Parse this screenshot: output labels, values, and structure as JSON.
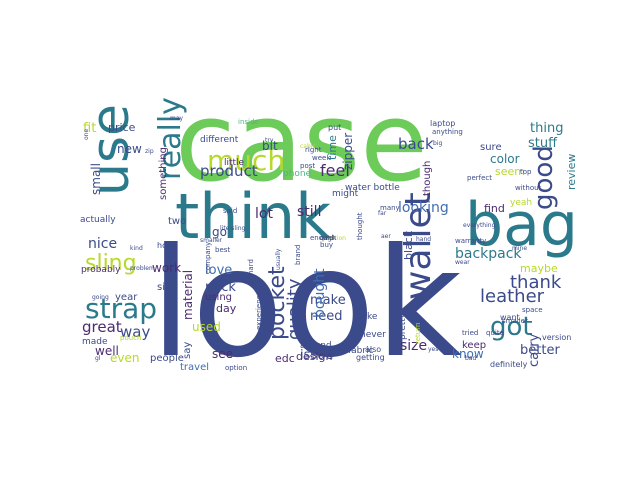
{
  "wordcloud": {
    "palette": {
      "background": "#ffffff",
      "navy": "#3b4a8a",
      "teal": "#2b7a8c",
      "green": "#6dcb5a",
      "lime": "#b7d92b",
      "purple": "#4b2c6e",
      "blue": "#3f6eb0",
      "seafoam": "#4fb38a",
      "yellow": "#e3df34"
    },
    "words": [
      {
        "text": "case",
        "color": "green"
      },
      {
        "text": "look",
        "color": "navy"
      },
      {
        "text": "think",
        "color": "teal"
      },
      {
        "text": "use",
        "color": "teal"
      },
      {
        "text": "bag",
        "color": "teal"
      },
      {
        "text": "wallet",
        "color": "navy"
      },
      {
        "text": "much",
        "color": "lime"
      },
      {
        "text": "really",
        "color": "teal"
      },
      {
        "text": "strap",
        "color": "teal"
      },
      {
        "text": "sling",
        "color": "lime"
      },
      {
        "text": "got",
        "color": "teal"
      },
      {
        "text": "good",
        "color": "navy"
      },
      {
        "text": "leather",
        "color": "navy"
      },
      {
        "text": "thank",
        "color": "navy"
      },
      {
        "text": "pocket",
        "color": "navy"
      },
      {
        "text": "quality",
        "color": "navy"
      },
      {
        "text": "product",
        "color": "navy"
      },
      {
        "text": "feel",
        "color": "purple"
      },
      {
        "text": "back",
        "color": "navy"
      },
      {
        "text": "looking",
        "color": "blue"
      },
      {
        "text": "backpack",
        "color": "teal"
      },
      {
        "text": "make",
        "color": "navy"
      },
      {
        "text": "need",
        "color": "navy"
      },
      {
        "text": "still",
        "color": "purple"
      },
      {
        "text": "lot",
        "color": "purple"
      },
      {
        "text": "love",
        "color": "blue"
      },
      {
        "text": "nice",
        "color": "navy"
      },
      {
        "text": "great",
        "color": "purple"
      },
      {
        "text": "way",
        "color": "navy"
      },
      {
        "text": "pack",
        "color": "navy"
      },
      {
        "text": "used",
        "color": "lime"
      },
      {
        "text": "thing",
        "color": "teal"
      },
      {
        "text": "stuff",
        "color": "teal"
      },
      {
        "text": "color",
        "color": "teal"
      },
      {
        "text": "review",
        "color": "teal"
      },
      {
        "text": "better",
        "color": "navy"
      },
      {
        "text": "carry",
        "color": "navy"
      },
      {
        "text": "size",
        "color": "purple"
      },
      {
        "text": "know",
        "color": "blue"
      },
      {
        "text": "bought",
        "color": "blue"
      },
      {
        "text": "material",
        "color": "purple"
      },
      {
        "text": "design",
        "color": "purple"
      },
      {
        "text": "issue",
        "color": "navy"
      },
      {
        "text": "work",
        "color": "purple"
      },
      {
        "text": "well",
        "color": "purple"
      },
      {
        "text": "even",
        "color": "lime"
      },
      {
        "text": "see",
        "color": "purple"
      },
      {
        "text": "new",
        "color": "navy"
      },
      {
        "text": "fit",
        "color": "lime"
      },
      {
        "text": "price",
        "color": "navy"
      },
      {
        "text": "small",
        "color": "navy"
      },
      {
        "text": "bit",
        "color": "navy"
      },
      {
        "text": "go",
        "color": "navy"
      },
      {
        "text": "day",
        "color": "purple"
      },
      {
        "text": "using",
        "color": "purple"
      },
      {
        "text": "two",
        "color": "navy"
      },
      {
        "text": "side",
        "color": "navy"
      },
      {
        "text": "year",
        "color": "navy"
      },
      {
        "text": "say",
        "color": "navy"
      },
      {
        "text": "find",
        "color": "purple"
      },
      {
        "text": "seem",
        "color": "lime"
      },
      {
        "text": "maybe",
        "color": "lime"
      },
      {
        "text": "keep",
        "color": "purple"
      },
      {
        "text": "zipper",
        "color": "navy"
      },
      {
        "text": "edc",
        "color": "purple"
      },
      {
        "text": "people",
        "color": "navy"
      },
      {
        "text": "travel",
        "color": "blue"
      },
      {
        "text": "black",
        "color": "navy"
      },
      {
        "text": "sure",
        "color": "navy"
      },
      {
        "text": "time",
        "color": "teal"
      },
      {
        "text": "different",
        "color": "navy"
      },
      {
        "text": "little",
        "color": "purple"
      },
      {
        "text": "something",
        "color": "purple"
      },
      {
        "text": "probably",
        "color": "purple"
      },
      {
        "text": "actually",
        "color": "navy"
      },
      {
        "text": "made",
        "color": "navy"
      },
      {
        "text": "take",
        "color": "navy"
      },
      {
        "text": "never",
        "color": "navy"
      },
      {
        "text": "might",
        "color": "navy"
      },
      {
        "text": "around",
        "color": "navy"
      },
      {
        "text": "phone",
        "color": "seafoam"
      },
      {
        "text": "water bottle",
        "color": "navy"
      },
      {
        "text": "laptop",
        "color": "navy"
      },
      {
        "text": "put",
        "color": "navy"
      },
      {
        "text": "hold",
        "color": "navy"
      },
      {
        "text": "pretty",
        "color": "navy"
      },
      {
        "text": "though",
        "color": "purple"
      },
      {
        "text": "yeah",
        "color": "lime"
      },
      {
        "text": "want",
        "color": "navy"
      },
      {
        "text": "definitely",
        "color": "navy"
      },
      {
        "text": "fabric",
        "color": "navy"
      },
      {
        "text": "also",
        "color": "navy"
      },
      {
        "text": "getting",
        "color": "navy"
      },
      {
        "text": "quite",
        "color": "navy"
      },
      {
        "text": "version",
        "color": "navy"
      },
      {
        "text": "smaller",
        "color": "navy"
      },
      {
        "text": "space",
        "color": "navy"
      },
      {
        "text": "anything",
        "color": "navy"
      },
      {
        "text": "company",
        "color": "navy"
      },
      {
        "text": "perfect",
        "color": "navy"
      },
      {
        "text": "tried",
        "color": "navy"
      },
      {
        "text": "inside",
        "color": "seafoam"
      },
      {
        "text": "pouch",
        "color": "lime"
      },
      {
        "text": "option",
        "color": "navy"
      },
      {
        "text": "without",
        "color": "navy"
      },
      {
        "text": "top",
        "color": "navy"
      },
      {
        "text": "best",
        "color": "navy"
      },
      {
        "text": "hard",
        "color": "navy"
      },
      {
        "text": "brand",
        "color": "navy"
      },
      {
        "text": "enough",
        "color": "navy"
      },
      {
        "text": "buy",
        "color": "navy"
      },
      {
        "text": "many",
        "color": "navy"
      },
      {
        "text": "said",
        "color": "navy"
      },
      {
        "text": "week",
        "color": "navy"
      },
      {
        "text": "right",
        "color": "navy"
      },
      {
        "text": "post",
        "color": "navy"
      },
      {
        "text": "big",
        "color": "navy"
      },
      {
        "text": "thought",
        "color": "navy"
      },
      {
        "text": "return",
        "color": "lime"
      },
      {
        "text": "experience",
        "color": "navy"
      },
      {
        "text": "warranty",
        "color": "navy"
      },
      {
        "text": "problem",
        "color": "navy"
      },
      {
        "text": "kind",
        "color": "navy"
      },
      {
        "text": "zip",
        "color": "navy"
      },
      {
        "text": "going",
        "color": "navy"
      },
      {
        "text": "yes",
        "color": "navy"
      },
      {
        "text": "bad",
        "color": "navy"
      },
      {
        "text": "wear",
        "color": "navy"
      },
      {
        "text": "far",
        "color": "navy"
      },
      {
        "text": "aer",
        "color": "navy"
      },
      {
        "text": "everything",
        "color": "navy"
      },
      {
        "text": "usually",
        "color": "navy"
      },
      {
        "text": "gl",
        "color": "navy"
      },
      {
        "text": "lite sling",
        "color": "navy"
      },
      {
        "text": "mine",
        "color": "navy"
      },
      {
        "text": "hand",
        "color": "navy"
      },
      {
        "text": "smaller",
        "color": "navy"
      },
      {
        "text": "may",
        "color": "navy"
      },
      {
        "text": "one",
        "color": "navy"
      },
      {
        "text": "try",
        "color": "navy"
      },
      {
        "text": "cable",
        "color": "lime"
      },
      {
        "text": "question",
        "color": "lime"
      },
      {
        "text": "quick",
        "color": "navy"
      },
      {
        "text": "card",
        "color": "navy"
      }
    ]
  }
}
